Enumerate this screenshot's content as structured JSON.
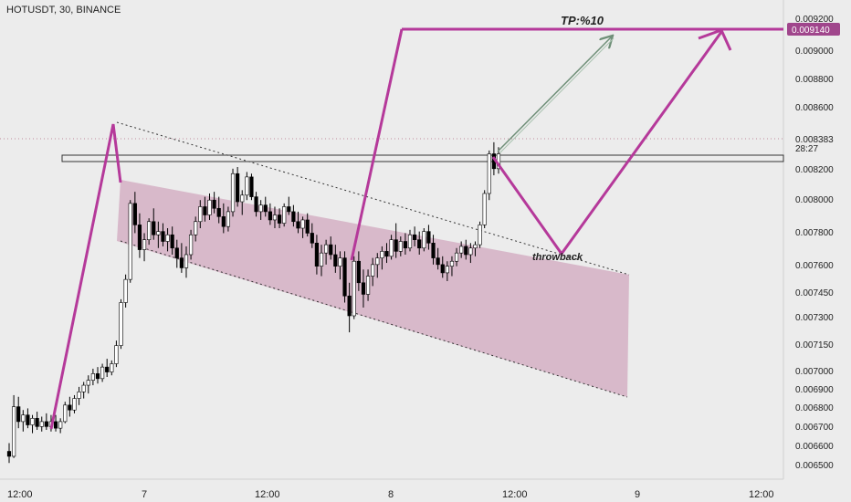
{
  "symbol": {
    "label": "HOTUSDT, 30, BINANCE"
  },
  "price_axis": {
    "ticks": [
      "0.009200",
      "0.009000",
      "0.008800",
      "0.008600",
      "0.008383",
      "0.008200",
      "0.008000",
      "0.007800",
      "0.007600",
      "0.007450",
      "0.007300",
      "0.007150",
      "0.007000",
      "0.006900",
      "0.006800",
      "0.006700",
      "0.006600",
      "0.006500"
    ],
    "current_price": "0.008383",
    "countdown": "28:27",
    "target_price": "0.009140"
  },
  "time_axis": {
    "ticks": [
      "12:00",
      "7",
      "12:00",
      "8",
      "12:00",
      "9",
      "12:00"
    ]
  },
  "annotations": {
    "target": "TP:%10",
    "throwback": "throwback"
  },
  "colors": {
    "background": "#ececec",
    "up_candle": "#ffffff",
    "down_candle": "#000000",
    "magenta": "#b5399a",
    "target_tag": "#a0468c",
    "channel_fill": "#c98fae",
    "arrow_green": "#6f8f78"
  },
  "chart_data": {
    "type": "candlestick",
    "title": "HOTUSDT, 30, BINANCE",
    "ylim": [
      0.00645,
      0.00925
    ],
    "candles": [
      [
        0.00658,
        0.00663,
        0.00651,
        0.00655
      ],
      [
        0.00655,
        0.00692,
        0.00654,
        0.00685
      ],
      [
        0.00685,
        0.00691,
        0.00672,
        0.00676
      ],
      [
        0.00676,
        0.00683,
        0.0067,
        0.0068
      ],
      [
        0.0068,
        0.00684,
        0.00672,
        0.00674
      ],
      [
        0.00674,
        0.0068,
        0.00669,
        0.00678
      ],
      [
        0.00678,
        0.00682,
        0.00671,
        0.00673
      ],
      [
        0.00673,
        0.00679,
        0.0067,
        0.00676
      ],
      [
        0.00676,
        0.00681,
        0.00671,
        0.00673
      ],
      [
        0.00673,
        0.0068,
        0.0067,
        0.00676
      ],
      [
        0.00676,
        0.0068,
        0.0067,
        0.00672
      ],
      [
        0.00672,
        0.00678,
        0.00669,
        0.00676
      ],
      [
        0.00676,
        0.00688,
        0.00675,
        0.00686
      ],
      [
        0.00686,
        0.00691,
        0.00679,
        0.00683
      ],
      [
        0.00683,
        0.00692,
        0.00681,
        0.0069
      ],
      [
        0.0069,
        0.00697,
        0.00686,
        0.00694
      ],
      [
        0.00694,
        0.007,
        0.0069,
        0.00698
      ],
      [
        0.00698,
        0.00704,
        0.00693,
        0.00701
      ],
      [
        0.00701,
        0.00708,
        0.00698,
        0.00705
      ],
      [
        0.00705,
        0.00709,
        0.00699,
        0.00702
      ],
      [
        0.00702,
        0.00711,
        0.007,
        0.00709
      ],
      [
        0.00709,
        0.00714,
        0.00703,
        0.00706
      ],
      [
        0.00706,
        0.00713,
        0.00704,
        0.00711
      ],
      [
        0.00711,
        0.00725,
        0.00709,
        0.00722
      ],
      [
        0.00722,
        0.0075,
        0.0072,
        0.00748
      ],
      [
        0.00748,
        0.00765,
        0.00745,
        0.00762
      ],
      [
        0.00762,
        0.0081,
        0.0076,
        0.00808
      ],
      [
        0.00808,
        0.00815,
        0.0079,
        0.00795
      ],
      [
        0.00795,
        0.00802,
        0.00775,
        0.0078
      ],
      [
        0.0078,
        0.0079,
        0.00773,
        0.00786
      ],
      [
        0.00786,
        0.00799,
        0.00783,
        0.00797
      ],
      [
        0.00797,
        0.00805,
        0.00786,
        0.00789
      ],
      [
        0.00789,
        0.00797,
        0.00781,
        0.00791
      ],
      [
        0.00791,
        0.00796,
        0.00782,
        0.00785
      ],
      [
        0.00785,
        0.00793,
        0.00779,
        0.00789
      ],
      [
        0.00789,
        0.00794,
        0.00777,
        0.00781
      ],
      [
        0.00781,
        0.00786,
        0.00769,
        0.00775
      ],
      [
        0.00775,
        0.00784,
        0.00766,
        0.00769
      ],
      [
        0.00769,
        0.00782,
        0.00763,
        0.00777
      ],
      [
        0.00777,
        0.00792,
        0.00774,
        0.00789
      ],
      [
        0.00789,
        0.008,
        0.00785,
        0.00797
      ],
      [
        0.00797,
        0.0081,
        0.00793,
        0.00806
      ],
      [
        0.00806,
        0.00812,
        0.00797,
        0.00801
      ],
      [
        0.00801,
        0.00814,
        0.00798,
        0.0081
      ],
      [
        0.0081,
        0.00815,
        0.00802,
        0.00805
      ],
      [
        0.00805,
        0.00812,
        0.00796,
        0.008
      ],
      [
        0.008,
        0.00808,
        0.0079,
        0.00794
      ],
      [
        0.00794,
        0.00806,
        0.00791,
        0.00803
      ],
      [
        0.00803,
        0.00829,
        0.008,
        0.00826
      ],
      [
        0.00826,
        0.0083,
        0.00806,
        0.00809
      ],
      [
        0.00809,
        0.00816,
        0.00801,
        0.00813
      ],
      [
        0.00813,
        0.00827,
        0.0081,
        0.00824
      ],
      [
        0.00824,
        0.00826,
        0.0081,
        0.00812
      ],
      [
        0.00812,
        0.00815,
        0.008,
        0.00803
      ],
      [
        0.00803,
        0.0081,
        0.00798,
        0.00807
      ],
      [
        0.00807,
        0.00812,
        0.008,
        0.00803
      ],
      [
        0.00803,
        0.00808,
        0.00795,
        0.00798
      ],
      [
        0.00798,
        0.00806,
        0.00793,
        0.00801
      ],
      [
        0.00801,
        0.00805,
        0.00793,
        0.00796
      ],
      [
        0.00796,
        0.00808,
        0.00794,
        0.00806
      ],
      [
        0.00806,
        0.00812,
        0.00801,
        0.00803
      ],
      [
        0.00803,
        0.00807,
        0.00794,
        0.00797
      ],
      [
        0.00797,
        0.00803,
        0.0079,
        0.00793
      ],
      [
        0.00793,
        0.008,
        0.00787,
        0.00798
      ],
      [
        0.00798,
        0.00802,
        0.00788,
        0.0079
      ],
      [
        0.0079,
        0.00796,
        0.00781,
        0.00784
      ],
      [
        0.00784,
        0.00789,
        0.00765,
        0.0077
      ],
      [
        0.0077,
        0.00783,
        0.00764,
        0.00778
      ],
      [
        0.00778,
        0.00786,
        0.00771,
        0.00783
      ],
      [
        0.00783,
        0.00788,
        0.00774,
        0.00777
      ],
      [
        0.00777,
        0.00783,
        0.00766,
        0.0077
      ],
      [
        0.0077,
        0.00779,
        0.00762,
        0.00775
      ],
      [
        0.00775,
        0.00779,
        0.00748,
        0.00752
      ],
      [
        0.00752,
        0.0076,
        0.0073,
        0.0074
      ],
      [
        0.0074,
        0.00776,
        0.00738,
        0.00773
      ],
      [
        0.00773,
        0.00779,
        0.00755,
        0.0076
      ],
      [
        0.0076,
        0.00768,
        0.00745,
        0.00753
      ],
      [
        0.00753,
        0.00768,
        0.00749,
        0.00764
      ],
      [
        0.00764,
        0.00775,
        0.00758,
        0.00771
      ],
      [
        0.00771,
        0.00778,
        0.00763,
        0.00775
      ],
      [
        0.00775,
        0.00782,
        0.00768,
        0.00779
      ],
      [
        0.00779,
        0.00784,
        0.00772,
        0.00776
      ],
      [
        0.00776,
        0.00789,
        0.00774,
        0.00786
      ],
      [
        0.00786,
        0.00796,
        0.00775,
        0.00779
      ],
      [
        0.00779,
        0.00788,
        0.00776,
        0.00785
      ],
      [
        0.00785,
        0.0079,
        0.00777,
        0.00781
      ],
      [
        0.00781,
        0.00792,
        0.00779,
        0.00789
      ],
      [
        0.00789,
        0.00794,
        0.00782,
        0.00786
      ],
      [
        0.00786,
        0.00791,
        0.00777,
        0.00781
      ],
      [
        0.00781,
        0.00793,
        0.00779,
        0.00791
      ],
      [
        0.00791,
        0.00795,
        0.0078,
        0.00784
      ],
      [
        0.00784,
        0.00789,
        0.00771,
        0.00775
      ],
      [
        0.00775,
        0.00781,
        0.00768,
        0.00771
      ],
      [
        0.00771,
        0.00776,
        0.00763,
        0.00766
      ],
      [
        0.00766,
        0.00773,
        0.00761,
        0.0077
      ],
      [
        0.0077,
        0.00776,
        0.00764,
        0.00773
      ],
      [
        0.00773,
        0.00781,
        0.0077,
        0.00778
      ],
      [
        0.00778,
        0.00785,
        0.00775,
        0.00782
      ],
      [
        0.00782,
        0.00786,
        0.00774,
        0.00777
      ],
      [
        0.00777,
        0.00784,
        0.00772,
        0.00781
      ],
      [
        0.00781,
        0.00785,
        0.00776,
        0.00783
      ],
      [
        0.00783,
        0.00797,
        0.00781,
        0.00795
      ],
      [
        0.00795,
        0.00816,
        0.00793,
        0.00814
      ],
      [
        0.00814,
        0.0084,
        0.0081,
        0.00838
      ],
      [
        0.00838,
        0.00845,
        0.00825,
        0.00829
      ],
      [
        0.00829,
        0.00842,
        0.00826,
        0.00838
      ]
    ],
    "channel": {
      "upper": [
        [
          0.00848,
          0.0076
        ],
        0
      ],
      "note": "descending channel"
    },
    "trend_lines": [],
    "levels": {
      "resistance_zone": [
        0.00828,
        0.00832
      ],
      "target": 0.00914
    }
  }
}
